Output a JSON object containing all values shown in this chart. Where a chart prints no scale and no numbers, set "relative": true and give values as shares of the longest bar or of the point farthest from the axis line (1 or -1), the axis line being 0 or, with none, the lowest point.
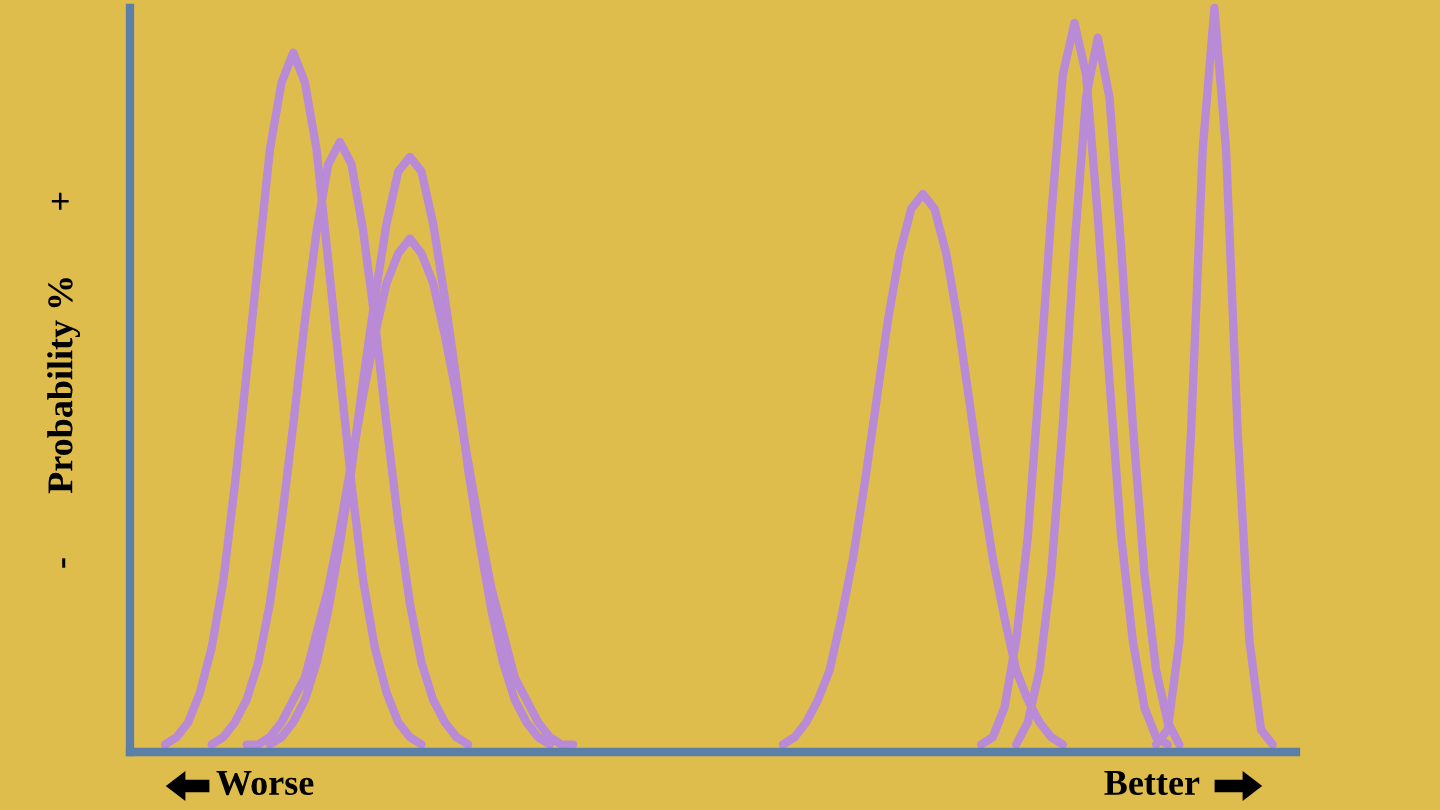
{
  "chart_data": {
    "type": "line",
    "relative": true,
    "ylabel": "-       Probability %       +",
    "annotations": [
      "Worse",
      "Better"
    ],
    "categories": [
      null,
      null,
      null,
      null,
      null,
      null,
      null,
      null,
      null,
      null,
      null,
      null,
      null,
      null,
      null,
      null,
      null,
      null,
      null,
      null,
      null,
      null,
      null,
      null,
      null,
      null,
      null,
      null,
      null,
      null,
      null,
      null,
      null,
      null,
      null,
      null,
      null,
      null,
      null,
      null,
      null,
      null,
      null,
      null,
      null,
      null,
      null,
      null,
      null,
      null,
      null,
      null,
      null,
      null,
      null,
      null,
      null,
      null,
      null,
      null,
      null,
      null,
      null,
      null,
      null,
      null,
      null,
      null,
      null,
      null,
      null,
      null,
      null,
      null,
      null,
      null,
      null,
      null,
      null,
      null,
      null,
      null,
      null,
      null,
      null,
      null,
      null,
      null,
      null,
      null,
      null,
      null,
      null,
      null,
      null,
      null,
      null,
      null,
      null,
      null,
      null
    ],
    "series": [
      {
        "color": "#b98ad6",
        "values": [
          null,
          null,
          null,
          0.01,
          0.02,
          0.04,
          0.08,
          0.14,
          0.23,
          0.36,
          0.51,
          0.66,
          0.81,
          0.9,
          0.94,
          0.9,
          0.81,
          0.66,
          0.51,
          0.36,
          0.23,
          0.14,
          0.08,
          0.04,
          0.02,
          0.01,
          null,
          null,
          null,
          null,
          null,
          null,
          null,
          null,
          null,
          null,
          null,
          null,
          null,
          null,
          null,
          null,
          null,
          null,
          null,
          null,
          null,
          null,
          null,
          null,
          null,
          null,
          null,
          null,
          null,
          null,
          null,
          null,
          null,
          null,
          null,
          null,
          null,
          null,
          null,
          null,
          null,
          null,
          null,
          null,
          null,
          null,
          null,
          null,
          null,
          null,
          null,
          null,
          null,
          null,
          null,
          null,
          null,
          null,
          null,
          null,
          null,
          null,
          null,
          null,
          null,
          null,
          null,
          null,
          null,
          null,
          null,
          null,
          null,
          null,
          null
        ]
      },
      {
        "color": "#b98ad6",
        "values": [
          null,
          null,
          null,
          null,
          null,
          null,
          null,
          0.01,
          0.02,
          0.04,
          0.07,
          0.12,
          0.2,
          0.31,
          0.44,
          0.58,
          0.7,
          0.79,
          0.82,
          0.79,
          0.7,
          0.58,
          0.44,
          0.31,
          0.2,
          0.12,
          0.07,
          0.04,
          0.02,
          0.01,
          null,
          null,
          null,
          null,
          null,
          null,
          null,
          null,
          null,
          null,
          null,
          null,
          null,
          null,
          null,
          null,
          null,
          null,
          null,
          null,
          null,
          null,
          null,
          null,
          null,
          null,
          null,
          null,
          null,
          null,
          null,
          null,
          null,
          null,
          null,
          null,
          null,
          null,
          null,
          null,
          null,
          null,
          null,
          null,
          null,
          null,
          null,
          null,
          null,
          null,
          null,
          null,
          null,
          null,
          null,
          null,
          null,
          null,
          null,
          null,
          null,
          null,
          null,
          null,
          null,
          null,
          null,
          null,
          null,
          null,
          null
        ]
      },
      {
        "color": "#b98ad6",
        "values": [
          null,
          null,
          null,
          null,
          null,
          null,
          null,
          null,
          null,
          null,
          null,
          null,
          0.01,
          0.02,
          0.04,
          0.07,
          0.12,
          0.19,
          0.28,
          0.38,
          0.5,
          0.61,
          0.71,
          0.78,
          0.8,
          0.78,
          0.71,
          0.61,
          0.5,
          0.38,
          0.28,
          0.19,
          0.12,
          0.07,
          0.04,
          0.02,
          0.01,
          null,
          null,
          null,
          null,
          null,
          null,
          null,
          null,
          null,
          null,
          null,
          null,
          null,
          null,
          null,
          null,
          null,
          null,
          null,
          null,
          null,
          null,
          null,
          null,
          null,
          null,
          null,
          null,
          null,
          null,
          null,
          null,
          null,
          null,
          null,
          null,
          null,
          null,
          null,
          null,
          null,
          null,
          null,
          null,
          null,
          null,
          null,
          null,
          null,
          null,
          null,
          null,
          null,
          null,
          null,
          null,
          null,
          null,
          null,
          null,
          null,
          null,
          null,
          null
        ]
      },
      {
        "color": "#b98ad6",
        "values": [
          null,
          null,
          null,
          null,
          null,
          null,
          null,
          null,
          null,
          null,
          0.01,
          0.01,
          0.02,
          0.04,
          0.07,
          0.1,
          0.16,
          0.22,
          0.3,
          0.39,
          0.48,
          0.56,
          0.63,
          0.67,
          0.69,
          0.67,
          0.63,
          0.56,
          0.48,
          0.39,
          0.3,
          0.22,
          0.16,
          0.1,
          0.07,
          0.04,
          0.02,
          0.01,
          0.01,
          null,
          null,
          null,
          null,
          null,
          null,
          null,
          null,
          null,
          null,
          null,
          null,
          null,
          null,
          null,
          null,
          null,
          null,
          null,
          null,
          null,
          null,
          null,
          null,
          null,
          null,
          null,
          null,
          null,
          null,
          null,
          null,
          null,
          null,
          null,
          null,
          null,
          null,
          null,
          null,
          null,
          null,
          null,
          null,
          null,
          null,
          null,
          null,
          null,
          null,
          null,
          null,
          null,
          null,
          null,
          null,
          null,
          null,
          null,
          null,
          null,
          null
        ]
      },
      {
        "color": "#b98ad6",
        "values": [
          null,
          null,
          null,
          null,
          null,
          null,
          null,
          null,
          null,
          null,
          null,
          null,
          null,
          null,
          null,
          null,
          null,
          null,
          null,
          null,
          null,
          null,
          null,
          null,
          null,
          null,
          null,
          null,
          null,
          null,
          null,
          null,
          null,
          null,
          null,
          null,
          null,
          null,
          null,
          null,
          null,
          null,
          null,
          null,
          null,
          null,
          null,
          null,
          null,
          null,
          null,
          null,
          null,
          null,
          null,
          null,
          0.01,
          0.02,
          0.04,
          0.07,
          0.11,
          0.18,
          0.26,
          0.36,
          0.47,
          0.58,
          0.67,
          0.73,
          0.75,
          0.73,
          0.67,
          0.58,
          0.47,
          0.36,
          0.26,
          0.18,
          0.11,
          0.07,
          0.04,
          0.02,
          0.01,
          null,
          null,
          null,
          null,
          null,
          null,
          null,
          null,
          null,
          null,
          null,
          null,
          null,
          null,
          null,
          null,
          null,
          null,
          null,
          null
        ]
      },
      {
        "color": "#b98ad6",
        "values": [
          null,
          null,
          null,
          null,
          null,
          null,
          null,
          null,
          null,
          null,
          null,
          null,
          null,
          null,
          null,
          null,
          null,
          null,
          null,
          null,
          null,
          null,
          null,
          null,
          null,
          null,
          null,
          null,
          null,
          null,
          null,
          null,
          null,
          null,
          null,
          null,
          null,
          null,
          null,
          null,
          null,
          null,
          null,
          null,
          null,
          null,
          null,
          null,
          null,
          null,
          null,
          null,
          null,
          null,
          null,
          null,
          null,
          null,
          null,
          null,
          null,
          null,
          null,
          null,
          null,
          null,
          null,
          null,
          null,
          null,
          null,
          null,
          null,
          0.01,
          0.02,
          0.06,
          0.15,
          0.29,
          0.5,
          0.72,
          0.91,
          0.98,
          0.91,
          0.72,
          0.5,
          0.29,
          0.15,
          0.06,
          0.02,
          0.01,
          null,
          null,
          null,
          null,
          null,
          null,
          null,
          null,
          null,
          null,
          null
        ]
      },
      {
        "color": "#b98ad6",
        "values": [
          null,
          null,
          null,
          null,
          null,
          null,
          null,
          null,
          null,
          null,
          null,
          null,
          null,
          null,
          null,
          null,
          null,
          null,
          null,
          null,
          null,
          null,
          null,
          null,
          null,
          null,
          null,
          null,
          null,
          null,
          null,
          null,
          null,
          null,
          null,
          null,
          null,
          null,
          null,
          null,
          null,
          null,
          null,
          null,
          null,
          null,
          null,
          null,
          null,
          null,
          null,
          null,
          null,
          null,
          null,
          null,
          null,
          null,
          null,
          null,
          null,
          null,
          null,
          null,
          null,
          null,
          null,
          null,
          null,
          null,
          null,
          null,
          null,
          null,
          null,
          null,
          0.01,
          0.04,
          0.11,
          0.24,
          0.44,
          0.68,
          0.88,
          0.96,
          0.88,
          0.68,
          0.44,
          0.24,
          0.11,
          0.04,
          0.01,
          null,
          null,
          null,
          null,
          null,
          null,
          null,
          null,
          null,
          null
        ]
      },
      {
        "color": "#b98ad6",
        "values": [
          null,
          null,
          null,
          null,
          null,
          null,
          null,
          null,
          null,
          null,
          null,
          null,
          null,
          null,
          null,
          null,
          null,
          null,
          null,
          null,
          null,
          null,
          null,
          null,
          null,
          null,
          null,
          null,
          null,
          null,
          null,
          null,
          null,
          null,
          null,
          null,
          null,
          null,
          null,
          null,
          null,
          null,
          null,
          null,
          null,
          null,
          null,
          null,
          null,
          null,
          null,
          null,
          null,
          null,
          null,
          null,
          null,
          null,
          null,
          null,
          null,
          null,
          null,
          null,
          null,
          null,
          null,
          null,
          null,
          null,
          null,
          null,
          null,
          null,
          null,
          null,
          null,
          null,
          null,
          null,
          null,
          null,
          null,
          null,
          null,
          null,
          null,
          null,
          0.01,
          0.03,
          0.15,
          0.43,
          0.81,
          1,
          0.81,
          0.43,
          0.15,
          0.03,
          0.01,
          null,
          null
        ]
      }
    ]
  }
}
